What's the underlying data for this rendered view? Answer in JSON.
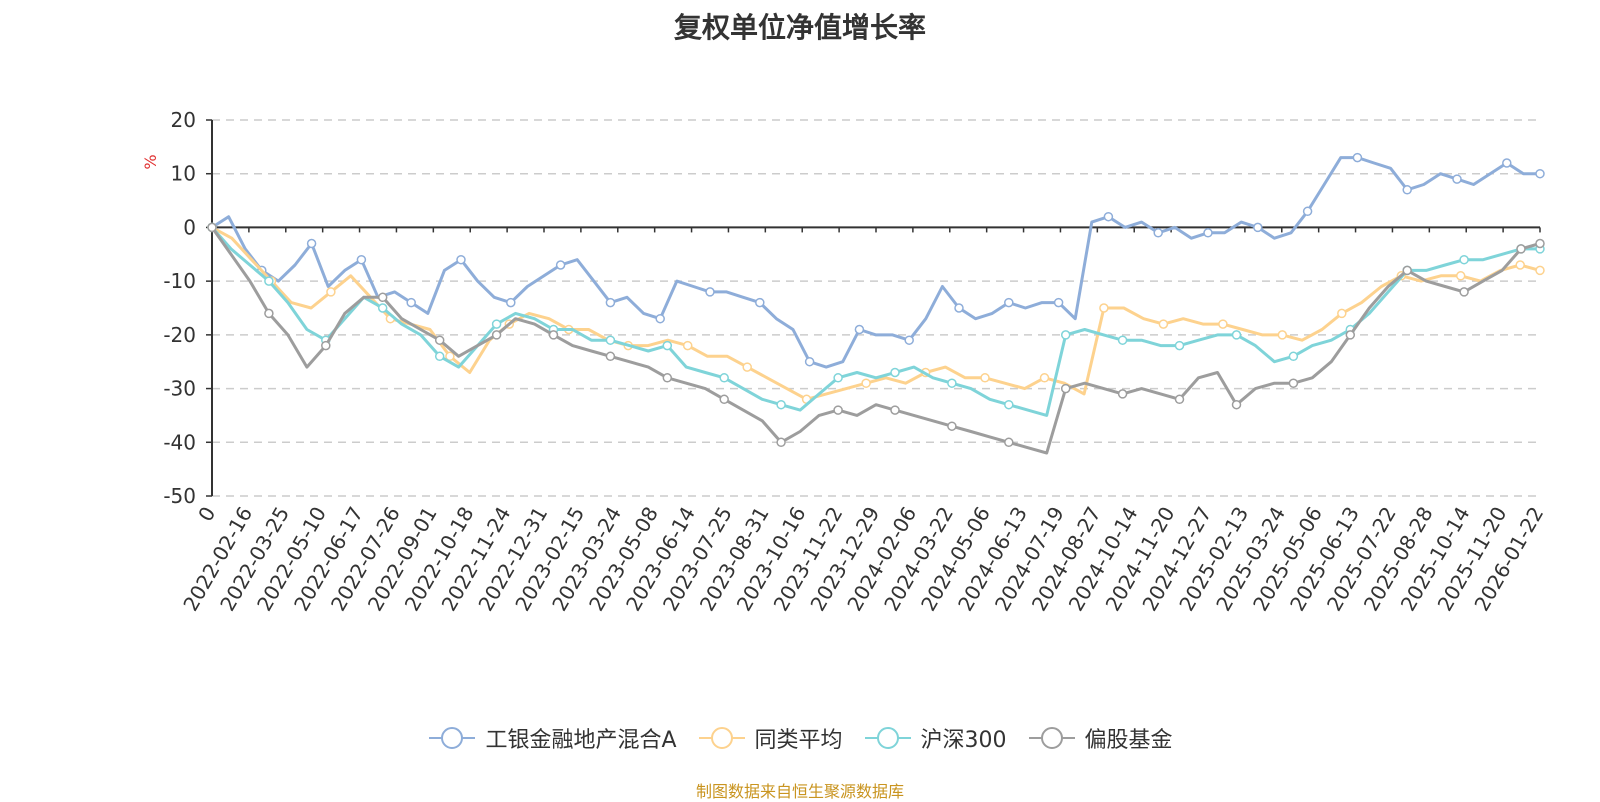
{
  "chart_data": {
    "type": "line",
    "title": "复权单位净值增长率",
    "ylabel": "%",
    "xlabel": "",
    "ylim": [
      -50,
      20
    ],
    "yticks": [
      20,
      10,
      0,
      -10,
      -20,
      -30,
      -40,
      -50
    ],
    "xticks": [
      "0",
      "2022-02-16",
      "2022-03-25",
      "2022-05-10",
      "2022-06-17",
      "2022-07-26",
      "2022-09-01",
      "2022-10-18",
      "2022-11-24",
      "2022-12-31",
      "2023-02-15",
      "2023-03-24",
      "2023-05-08",
      "2023-06-14",
      "2023-07-25",
      "2023-08-31",
      "2023-10-16",
      "2023-11-22",
      "2023-12-29",
      "2024-02-06",
      "2024-03-22",
      "2024-05-06",
      "2024-06-13",
      "2024-07-19",
      "2024-08-27",
      "2024-10-14",
      "2024-11-20",
      "2024-12-27",
      "2025-02-13",
      "2025-03-24",
      "2025-05-06",
      "2025-06-13",
      "2025-07-22",
      "2025-08-28",
      "2025-10-14",
      "2025-11-20",
      "2026-01-22"
    ],
    "grid": true,
    "legend_position": "bottom",
    "series": [
      {
        "name": "工银金融地产混合A",
        "color": "#8eadd9",
        "values": [
          0,
          2,
          -4,
          -8,
          -10,
          -7,
          -3,
          -11,
          -8,
          -6,
          -13,
          -12,
          -14,
          -16,
          -8,
          -6,
          -10,
          -13,
          -14,
          -11,
          -9,
          -7,
          -6,
          -10,
          -14,
          -13,
          -16,
          -17,
          -10,
          -11,
          -12,
          -12,
          -13,
          -14,
          -17,
          -19,
          -25,
          -26,
          -25,
          -19,
          -20,
          -20,
          -21,
          -17,
          -11,
          -15,
          -17,
          -16,
          -14,
          -15,
          -14,
          -14,
          -17,
          1,
          2,
          0,
          1,
          -1,
          0,
          -2,
          -1,
          -1,
          1,
          0,
          -2,
          -1,
          3,
          8,
          13,
          13,
          12,
          11,
          7,
          8,
          10,
          9,
          8,
          10,
          12,
          10,
          10
        ]
      },
      {
        "name": "同类平均",
        "color": "#fdd28e",
        "values": [
          0,
          -2,
          -6,
          -10,
          -14,
          -15,
          -12,
          -9,
          -13,
          -17,
          -18,
          -19,
          -24,
          -27,
          -21,
          -18,
          -16,
          -17,
          -19,
          -19,
          -21,
          -22,
          -22,
          -21,
          -22,
          -24,
          -24,
          -26,
          -28,
          -30,
          -32,
          -31,
          -30,
          -29,
          -28,
          -29,
          -27,
          -26,
          -28,
          -28,
          -29,
          -30,
          -28,
          -29,
          -31,
          -15,
          -15,
          -17,
          -18,
          -17,
          -18,
          -18,
          -19,
          -20,
          -20,
          -21,
          -19,
          -16,
          -14,
          -11,
          -9,
          -10,
          -9,
          -9,
          -10,
          -8,
          -7,
          -8
        ]
      },
      {
        "name": "沪深300",
        "color": "#7fd4d9",
        "values": [
          0,
          -4,
          -7,
          -10,
          -14,
          -19,
          -21,
          -17,
          -13,
          -15,
          -18,
          -20,
          -24,
          -26,
          -22,
          -18,
          -16,
          -17,
          -19,
          -19,
          -21,
          -21,
          -22,
          -23,
          -22,
          -26,
          -27,
          -28,
          -30,
          -32,
          -33,
          -34,
          -31,
          -28,
          -27,
          -28,
          -27,
          -26,
          -28,
          -29,
          -30,
          -32,
          -33,
          -34,
          -35,
          -20,
          -19,
          -20,
          -21,
          -21,
          -22,
          -22,
          -21,
          -20,
          -20,
          -22,
          -25,
          -24,
          -22,
          -21,
          -19,
          -16,
          -12,
          -8,
          -8,
          -7,
          -6,
          -6,
          -5,
          -4,
          -4
        ]
      },
      {
        "name": "偏股基金",
        "color": "#9d9d9d",
        "values": [
          0,
          -5,
          -10,
          -16,
          -20,
          -26,
          -22,
          -16,
          -13,
          -13,
          -17,
          -19,
          -21,
          -24,
          -22,
          -20,
          -17,
          -18,
          -20,
          -22,
          -23,
          -24,
          -25,
          -26,
          -28,
          -29,
          -30,
          -32,
          -34,
          -36,
          -40,
          -38,
          -35,
          -34,
          -35,
          -33,
          -34,
          -35,
          -36,
          -37,
          -38,
          -39,
          -40,
          -41,
          -42,
          -30,
          -29,
          -30,
          -31,
          -30,
          -31,
          -32,
          -28,
          -27,
          -33,
          -30,
          -29,
          -29,
          -28,
          -25,
          -20,
          -15,
          -11,
          -8,
          -10,
          -11,
          -12,
          -10,
          -8,
          -4,
          -3
        ]
      }
    ]
  },
  "source_note": "制图数据来自恒生聚源数据库"
}
